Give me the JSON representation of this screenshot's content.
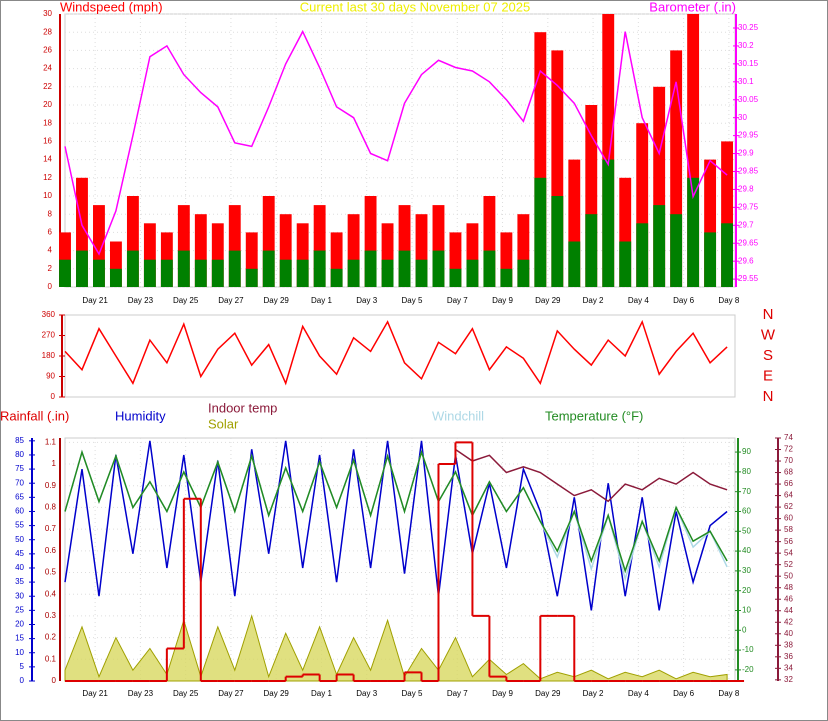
{
  "chart_data": [
    {
      "type": "combo",
      "title": "Current last 30 days November 07 2025",
      "title_color": "#eeee00",
      "grid": true,
      "x": [
        0,
        0.75,
        1.5,
        2.25,
        3,
        3.75,
        4.5,
        5.25,
        6,
        6.75,
        7.5,
        8.25,
        9,
        9.75,
        10.5,
        11.25,
        12,
        12.75,
        13.5,
        14.25,
        15,
        15.75,
        16.5,
        17.25,
        18,
        18.75,
        19.5,
        20.25,
        21,
        21.75,
        22.5,
        23.25,
        24,
        24.75,
        25.5,
        26.25,
        27,
        27.75,
        28.5,
        29.25
      ],
      "xlim": [
        0,
        29.6
      ],
      "xticks": [
        {
          "value": 1.33,
          "label": "Day 21"
        },
        {
          "value": 3.33,
          "label": "Day 23"
        },
        {
          "value": 5.33,
          "label": "Day 25"
        },
        {
          "value": 7.33,
          "label": "Day 27"
        },
        {
          "value": 9.33,
          "label": "Day 29"
        },
        {
          "value": 11.33,
          "label": "Day 1"
        },
        {
          "value": 13.33,
          "label": "Day 3"
        },
        {
          "value": 15.33,
          "label": "Day 5"
        },
        {
          "value": 17.33,
          "label": "Day 7"
        },
        {
          "value": 19.33,
          "label": "Day 9"
        },
        {
          "value": 21.33,
          "label": "Day 29"
        },
        {
          "value": 23.33,
          "label": "Day 2"
        },
        {
          "value": 25.33,
          "label": "Day 4"
        },
        {
          "value": 27.33,
          "label": "Day 6"
        },
        {
          "value": 29.33,
          "label": "Day 8"
        }
      ],
      "ylim": [
        0,
        30
      ],
      "yticks": [
        0,
        2,
        4,
        6,
        8,
        10,
        12,
        14,
        16,
        18,
        20,
        22,
        24,
        26,
        28,
        30
      ],
      "y2lim": [
        29.528,
        30.289
      ],
      "y2ticks": [
        29.55,
        29.6,
        29.65,
        29.7,
        29.75,
        29.8,
        29.85,
        29.9,
        29.95,
        30,
        30.05,
        30.1,
        30.15,
        30.2,
        30.25
      ],
      "series": [
        {
          "name": "Windspeed (mph)",
          "type": "bar",
          "color": "#ff0000",
          "values": [
            6,
            12,
            9,
            5,
            10,
            7,
            6,
            9,
            8,
            7,
            9,
            6,
            10,
            8,
            7,
            9,
            6,
            8,
            10,
            7,
            9,
            8,
            9,
            6,
            7,
            10,
            6,
            8,
            28,
            26,
            14,
            20,
            30,
            12,
            18,
            22,
            26,
            30,
            14,
            16
          ]
        },
        {
          "type": "bar",
          "color": "#008000",
          "values": [
            3,
            4,
            3,
            2,
            4,
            3,
            3,
            4,
            3,
            3,
            4,
            2,
            4,
            3,
            3,
            4,
            2,
            3,
            4,
            3,
            4,
            3,
            4,
            2,
            3,
            4,
            2,
            3,
            12,
            10,
            5,
            8,
            14,
            5,
            7,
            9,
            8,
            12,
            6,
            7
          ]
        },
        {
          "name": "Barometer (.in)",
          "type": "line",
          "axis": "y2",
          "color": "#ff00ff",
          "values": [
            29.92,
            29.7,
            29.62,
            29.74,
            29.95,
            30.17,
            30.2,
            30.12,
            30.07,
            30.03,
            29.93,
            29.92,
            30.03,
            30.15,
            30.24,
            30.14,
            30.03,
            30,
            29.9,
            29.88,
            30.04,
            30.12,
            30.16,
            30.14,
            30.13,
            30.1,
            30.05,
            29.99,
            30.13,
            30.09,
            30.04,
            29.95,
            29.87,
            30.24,
            30,
            29.9,
            30.1,
            29.78,
            29.88,
            29.84
          ]
        }
      ]
    },
    {
      "type": "line",
      "grid": false,
      "x": [
        0,
        0.75,
        1.5,
        2.25,
        3,
        3.75,
        4.5,
        5.25,
        6,
        6.75,
        7.5,
        8.25,
        9,
        9.75,
        10.5,
        11.25,
        12,
        12.75,
        13.5,
        14.25,
        15,
        15.75,
        16.5,
        17.25,
        18,
        18.75,
        19.5,
        20.25,
        21,
        21.75,
        22.5,
        23.25,
        24,
        24.75,
        25.5,
        26.25,
        27,
        27.75,
        28.5,
        29.25
      ],
      "xlim": [
        0,
        29.6
      ],
      "ylim": [
        0,
        360
      ],
      "yticks": [
        0,
        90,
        180,
        270,
        360
      ],
      "y2lim": [
        0,
        360
      ],
      "y2ticks": [
        {
          "value": 360,
          "label": "N"
        },
        {
          "value": 270,
          "label": "W"
        },
        {
          "value": 180,
          "label": "S"
        },
        {
          "value": 90,
          "label": "E"
        },
        {
          "value": 0,
          "label": "N"
        }
      ],
      "series": [
        {
          "type": "line",
          "color": "#ff0000",
          "values": [
            200,
            120,
            300,
            180,
            60,
            250,
            150,
            320,
            90,
            210,
            280,
            140,
            230,
            60,
            310,
            180,
            100,
            260,
            200,
            330,
            150,
            80,
            240,
            190,
            300,
            120,
            220,
            170,
            60,
            290,
            210,
            140,
            250,
            180,
            330,
            100,
            200,
            280,
            150,
            220
          ]
        }
      ]
    },
    {
      "type": "combo",
      "grid": true,
      "x": [
        0,
        0.75,
        1.5,
        2.25,
        3,
        3.75,
        4.5,
        5.25,
        6,
        6.75,
        7.5,
        8.25,
        9,
        9.75,
        10.5,
        11.25,
        12,
        12.75,
        13.5,
        14.25,
        15,
        15.75,
        16.5,
        17.25,
        18,
        18.75,
        19.5,
        20.25,
        21,
        21.75,
        22.5,
        23.25,
        24,
        24.75,
        25.5,
        26.25,
        27,
        27.75,
        28.5,
        29.25
      ],
      "xlim": [
        0,
        29.6
      ],
      "xticks": [
        {
          "value": 1.33,
          "label": "Day 21"
        },
        {
          "value": 3.33,
          "label": "Day 23"
        },
        {
          "value": 5.33,
          "label": "Day 25"
        },
        {
          "value": 7.33,
          "label": "Day 27"
        },
        {
          "value": 9.33,
          "label": "Day 29"
        },
        {
          "value": 11.33,
          "label": "Day 1"
        },
        {
          "value": 13.33,
          "label": "Day 3"
        },
        {
          "value": 15.33,
          "label": "Day 5"
        },
        {
          "value": 17.33,
          "label": "Day 7"
        },
        {
          "value": 19.33,
          "label": "Day 9"
        },
        {
          "value": 21.33,
          "label": "Day 29"
        },
        {
          "value": 23.33,
          "label": "Day 2"
        },
        {
          "value": 25.33,
          "label": "Day 4"
        },
        {
          "value": 27.33,
          "label": "Day 6"
        },
        {
          "value": 29.33,
          "label": "Day 8"
        }
      ],
      "ylim": [
        0,
        1.12
      ],
      "yticks": [
        0,
        0.1,
        0.2,
        0.3,
        0.4,
        0.5,
        0.6,
        0.7,
        0.8,
        0.9,
        1,
        1.1
      ],
      "y2lim": [
        -25.6,
        97.1
      ],
      "y2ticks": [
        -20,
        -10,
        0,
        10,
        20,
        30,
        40,
        50,
        60,
        70,
        80,
        90
      ],
      "y3lim": [
        0,
        86
      ],
      "y3ticks": [
        0,
        5,
        10,
        15,
        20,
        25,
        30,
        35,
        40,
        45,
        50,
        55,
        60,
        65,
        70,
        75,
        80,
        85
      ],
      "y4lim": [
        31.8,
        74
      ],
      "y4ticks": [
        32,
        34,
        36,
        38,
        40,
        42,
        44,
        46,
        48,
        50,
        52,
        54,
        56,
        58,
        60,
        62,
        64,
        66,
        68,
        70,
        72,
        74
      ],
      "series": [
        {
          "name": "Solar",
          "type": "area",
          "color": "#a0a000",
          "values": [
            0.05,
            0.25,
            0.02,
            0.2,
            0.05,
            0.15,
            0.03,
            0.28,
            0.02,
            0.25,
            0.05,
            0.3,
            0.02,
            0.22,
            0.05,
            0.25,
            0.03,
            0.2,
            0.05,
            0.28,
            0.02,
            0.15,
            0.05,
            0.2,
            0.02,
            0.1,
            0.03,
            0.08,
            0.01,
            0.04,
            0.02,
            0.05,
            0.01,
            0.04,
            0.02,
            0.05,
            0.01,
            0.04,
            0.02,
            0.03
          ]
        },
        {
          "name": "Humidity",
          "type": "line",
          "axis": "y3",
          "color": "#0000cc",
          "values": [
            35,
            75,
            30,
            80,
            45,
            85,
            40,
            80,
            35,
            78,
            30,
            82,
            45,
            85,
            40,
            80,
            35,
            82,
            40,
            85,
            38,
            85,
            30,
            80,
            45,
            70,
            40,
            75,
            60,
            30,
            65,
            25,
            70,
            30,
            65,
            25,
            60,
            35,
            55,
            60
          ]
        },
        {
          "name": "Windchill",
          "type": "line",
          "axis": "y2",
          "color": "#add8e6",
          "values": [
            60,
            90,
            65,
            88,
            62,
            75,
            60,
            80,
            62,
            85,
            60,
            88,
            58,
            82,
            60,
            85,
            62,
            86,
            58,
            88,
            60,
            90,
            65,
            80,
            58,
            75,
            60,
            72,
            55,
            37,
            60,
            31,
            58,
            26,
            55,
            32,
            62,
            42,
            50,
            32
          ]
        },
        {
          "name": "Temperature (°F)",
          "type": "line",
          "axis": "y2",
          "color": "#228b22",
          "values": [
            60,
            90,
            65,
            88,
            62,
            75,
            60,
            80,
            62,
            85,
            60,
            88,
            58,
            82,
            60,
            85,
            62,
            86,
            58,
            88,
            60,
            90,
            65,
            80,
            58,
            75,
            60,
            72,
            55,
            40,
            60,
            35,
            58,
            30,
            55,
            35,
            62,
            45,
            50,
            35
          ]
        },
        {
          "name": "Indoor temp",
          "type": "line",
          "axis": "y4",
          "color": "#8b1a3a",
          "values": [
            null,
            null,
            null,
            null,
            null,
            null,
            null,
            null,
            null,
            null,
            null,
            null,
            null,
            null,
            null,
            null,
            null,
            null,
            null,
            null,
            null,
            null,
            null,
            72,
            70,
            71,
            68,
            69,
            68,
            66,
            64,
            65,
            63,
            66,
            65,
            67,
            66,
            68,
            66,
            65
          ]
        },
        {
          "name": "Rainfall (.in)",
          "type": "step",
          "color": "#dd0000",
          "values": [
            0,
            0,
            0,
            0,
            0,
            0,
            0.15,
            0.84,
            0,
            0,
            0,
            0,
            0,
            0.02,
            0.03,
            0,
            0.03,
            0,
            0,
            0,
            0.04,
            0,
            1,
            1.1,
            0.3,
            0.02,
            0,
            0,
            0.3,
            0.3,
            0,
            0,
            0,
            0,
            0,
            0,
            0,
            0,
            0,
            0
          ]
        }
      ]
    }
  ]
}
